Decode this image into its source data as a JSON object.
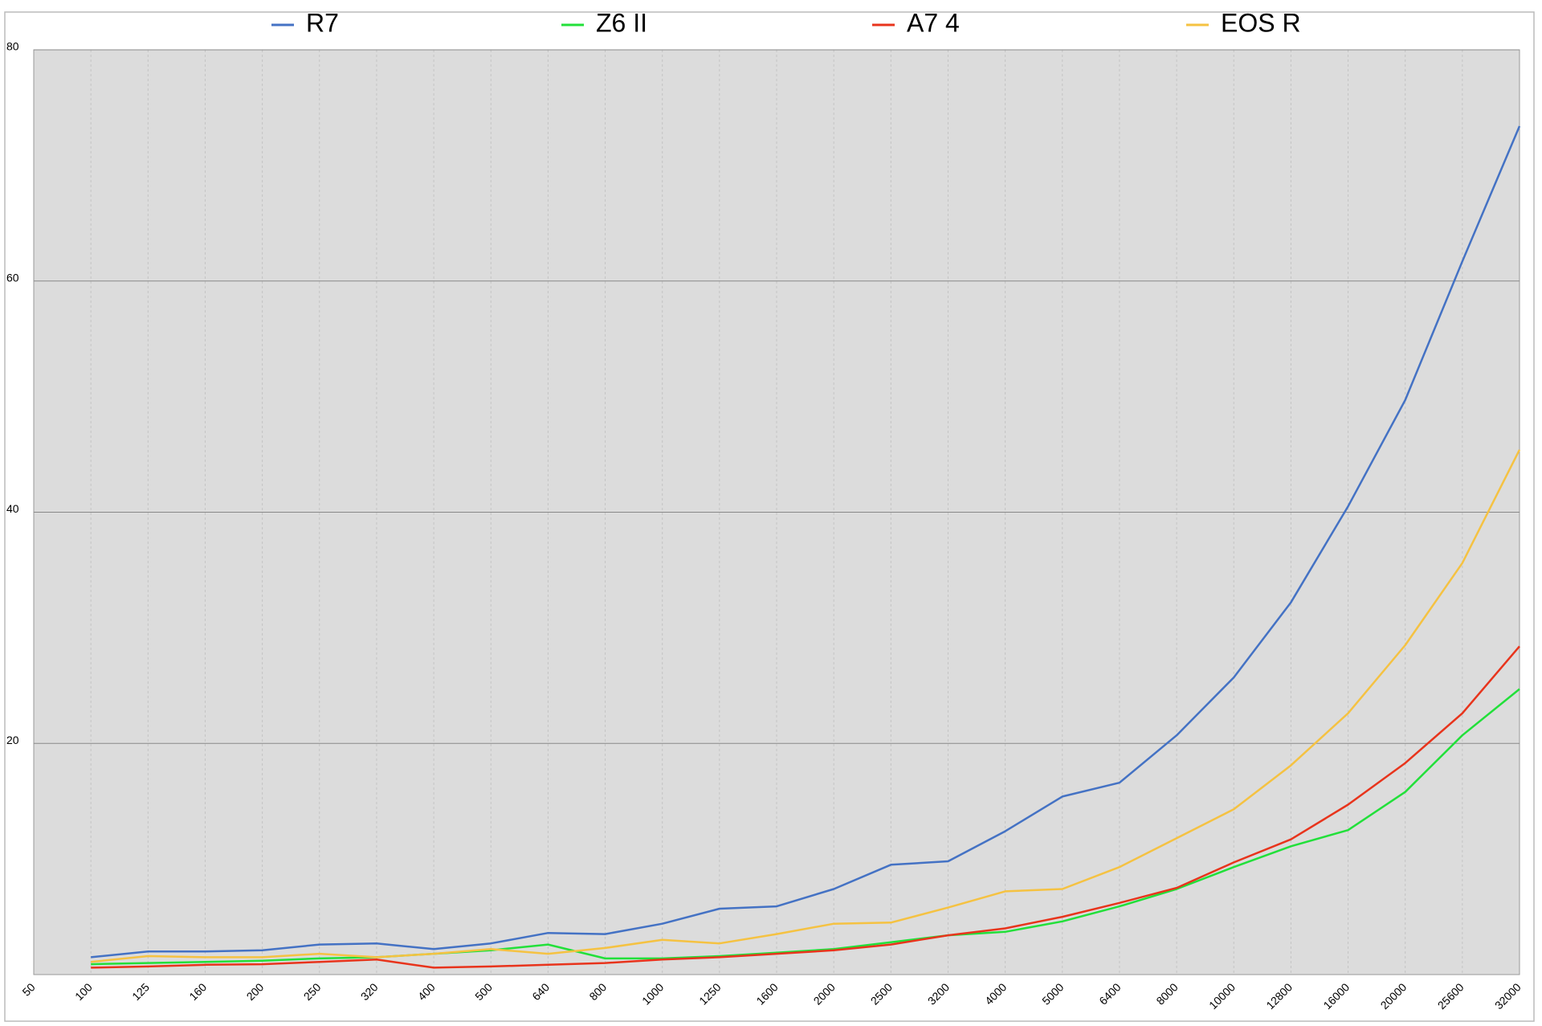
{
  "chart_data": {
    "type": "line",
    "categories": [
      "50",
      "100",
      "125",
      "160",
      "200",
      "250",
      "320",
      "400",
      "500",
      "640",
      "800",
      "1000",
      "1250",
      "1600",
      "2000",
      "2500",
      "3200",
      "4000",
      "5000",
      "6400",
      "8000",
      "10000",
      "12800",
      "16000",
      "20000",
      "25600",
      "32000"
    ],
    "series": [
      {
        "name": "R7",
        "color": "#4472c4",
        "values": [
          null,
          1.5,
          2.0,
          2.0,
          2.1,
          2.6,
          2.7,
          2.2,
          2.7,
          3.6,
          3.5,
          4.4,
          5.7,
          5.9,
          7.4,
          9.5,
          9.8,
          12.4,
          15.4,
          16.6,
          20.7,
          25.7,
          32.2,
          40.5,
          49.7,
          61.7,
          73.4
        ]
      },
      {
        "name": "Z6 II",
        "color": "#22e03a",
        "values": [
          null,
          0.9,
          1.0,
          1.1,
          1.2,
          1.4,
          1.5,
          1.8,
          2.1,
          2.6,
          1.4,
          1.4,
          1.6,
          1.9,
          2.2,
          2.8,
          3.4,
          3.7,
          4.6,
          5.9,
          7.4,
          9.3,
          11.1,
          12.5,
          15.8,
          20.7,
          24.7
        ]
      },
      {
        "name": "A7 4",
        "color": "#e8341c",
        "values": [
          null,
          0.6,
          0.7,
          0.85,
          0.9,
          1.1,
          1.3,
          0.6,
          0.7,
          0.85,
          1.0,
          1.3,
          1.5,
          1.8,
          2.1,
          2.6,
          3.4,
          4.0,
          5.0,
          6.2,
          7.5,
          9.7,
          11.7,
          14.7,
          18.3,
          22.6,
          28.4
        ]
      },
      {
        "name": "EOS R",
        "color": "#f5c242",
        "values": [
          null,
          1.1,
          1.6,
          1.5,
          1.5,
          1.8,
          1.5,
          1.8,
          2.2,
          1.8,
          2.3,
          3.0,
          2.7,
          3.5,
          4.4,
          4.5,
          5.8,
          7.2,
          7.4,
          9.3,
          11.8,
          14.3,
          18.1,
          22.6,
          28.5,
          35.6,
          45.4
        ]
      }
    ],
    "ylim": [
      0,
      80
    ],
    "yticks": [
      20,
      40,
      60,
      80
    ],
    "grid": true
  }
}
